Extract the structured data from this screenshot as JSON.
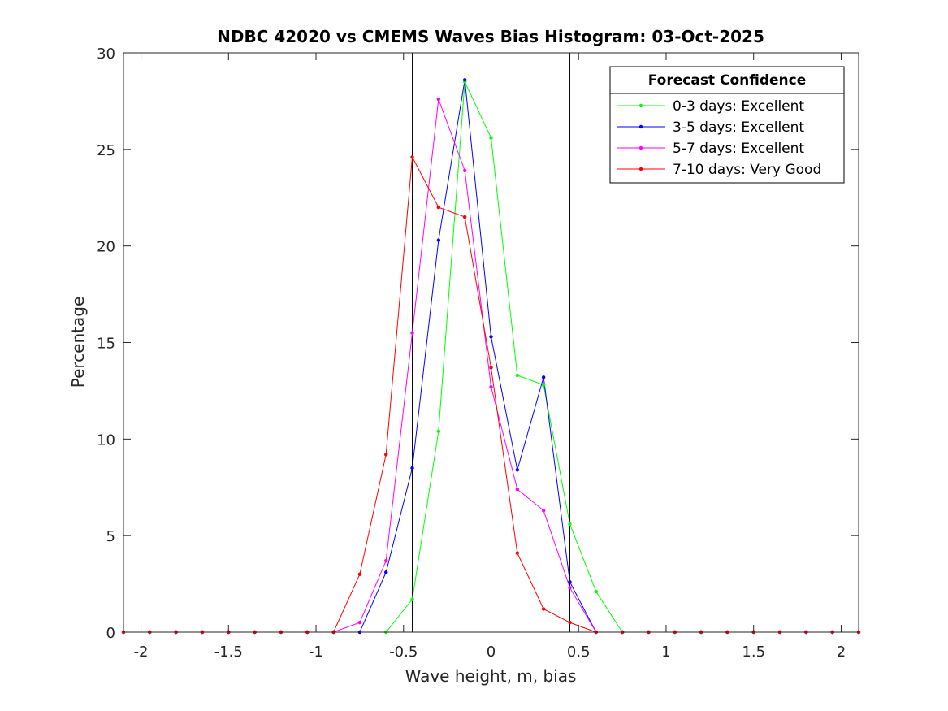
{
  "chart_data": {
    "type": "line",
    "title": "NDBC 42020 vs CMEMS Waves Bias Histogram: 03-Oct-2025",
    "xlabel": "Wave height, m, bias",
    "ylabel": "Percentage",
    "xlim": [
      -2.1,
      2.1
    ],
    "ylim": [
      0,
      30
    ],
    "xticks": [
      -2,
      -1.5,
      -1,
      -0.5,
      0,
      0.5,
      1,
      1.5,
      2
    ],
    "xtick_labels": [
      "-2",
      "-1.5",
      "-1",
      "-0.5",
      "0",
      "0.5",
      "1",
      "1.5",
      "2"
    ],
    "yticks": [
      0,
      5,
      10,
      15,
      20,
      25,
      30
    ],
    "ytick_labels": [
      "0",
      "5",
      "10",
      "15",
      "20",
      "25",
      "30"
    ],
    "grid": false,
    "vlines": [
      {
        "x": -0.45,
        "style": "solid",
        "color": "#000000"
      },
      {
        "x": 0,
        "style": "dotted",
        "color": "#000000"
      },
      {
        "x": 0.45,
        "style": "solid",
        "color": "#000000"
      }
    ],
    "x": [
      -2.1,
      -1.95,
      -1.8,
      -1.65,
      -1.5,
      -1.35,
      -1.2,
      -1.05,
      -0.9,
      -0.75,
      -0.6,
      -0.45,
      -0.3,
      -0.15,
      0,
      0.15,
      0.3,
      0.45,
      0.6,
      0.75,
      0.9,
      1.05,
      1.2,
      1.35,
      1.5,
      1.65,
      1.8,
      1.95,
      2.1
    ],
    "series": [
      {
        "name": "0-3 days: Excellent",
        "color": "#00ff00",
        "values": [
          0,
          0,
          0,
          0,
          0,
          0,
          0,
          0,
          0,
          0,
          0,
          1.7,
          10.4,
          28.5,
          25.6,
          13.3,
          12.8,
          5.6,
          2.1,
          0,
          0,
          0,
          0,
          0,
          0,
          0,
          0,
          0,
          0
        ]
      },
      {
        "name": "3-5 days: Excellent",
        "color": "#0000ff",
        "values": [
          0,
          0,
          0,
          0,
          0,
          0,
          0,
          0,
          0,
          0,
          3.1,
          8.5,
          20.3,
          28.6,
          15.3,
          8.4,
          13.2,
          2.6,
          0,
          0,
          0,
          0,
          0,
          0,
          0,
          0,
          0,
          0,
          0
        ]
      },
      {
        "name": "5-7 days: Excellent",
        "color": "#ff00ff",
        "values": [
          0,
          0,
          0,
          0,
          0,
          0,
          0,
          0,
          0,
          0.5,
          3.7,
          15.5,
          27.6,
          23.9,
          12.7,
          7.4,
          6.3,
          2.3,
          0,
          0,
          0,
          0,
          0,
          0,
          0,
          0,
          0,
          0,
          0
        ]
      },
      {
        "name": "7-10 days: Very Good",
        "color": "#ff0000",
        "values": [
          0,
          0,
          0,
          0,
          0,
          0,
          0,
          0,
          0,
          3.0,
          9.2,
          24.6,
          22.0,
          21.5,
          13.7,
          4.1,
          1.2,
          0.5,
          0,
          0,
          0,
          0,
          0,
          0,
          0,
          0,
          0,
          0,
          0
        ]
      }
    ],
    "legend": {
      "title": "Forecast Confidence",
      "location": "top-right"
    }
  }
}
